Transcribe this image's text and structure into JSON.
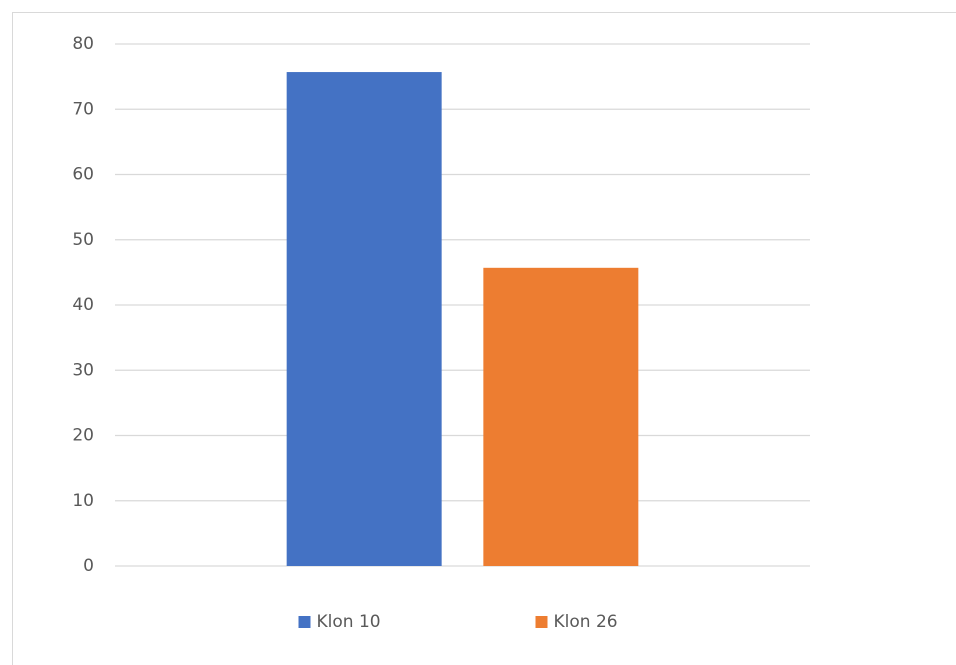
{
  "chart_data": {
    "type": "bar",
    "categories": [
      null
    ],
    "series": [
      {
        "name": "Klon 10",
        "color": "#4472c4",
        "values": [
          75.7
        ]
      },
      {
        "name": "Klon 26",
        "color": "#ed7d31",
        "values": [
          45.7
        ]
      }
    ],
    "ylim": [
      0,
      80
    ],
    "yticks": [
      0,
      10,
      20,
      30,
      40,
      50,
      60,
      70,
      80
    ],
    "grid": true,
    "legend": "bottom"
  }
}
